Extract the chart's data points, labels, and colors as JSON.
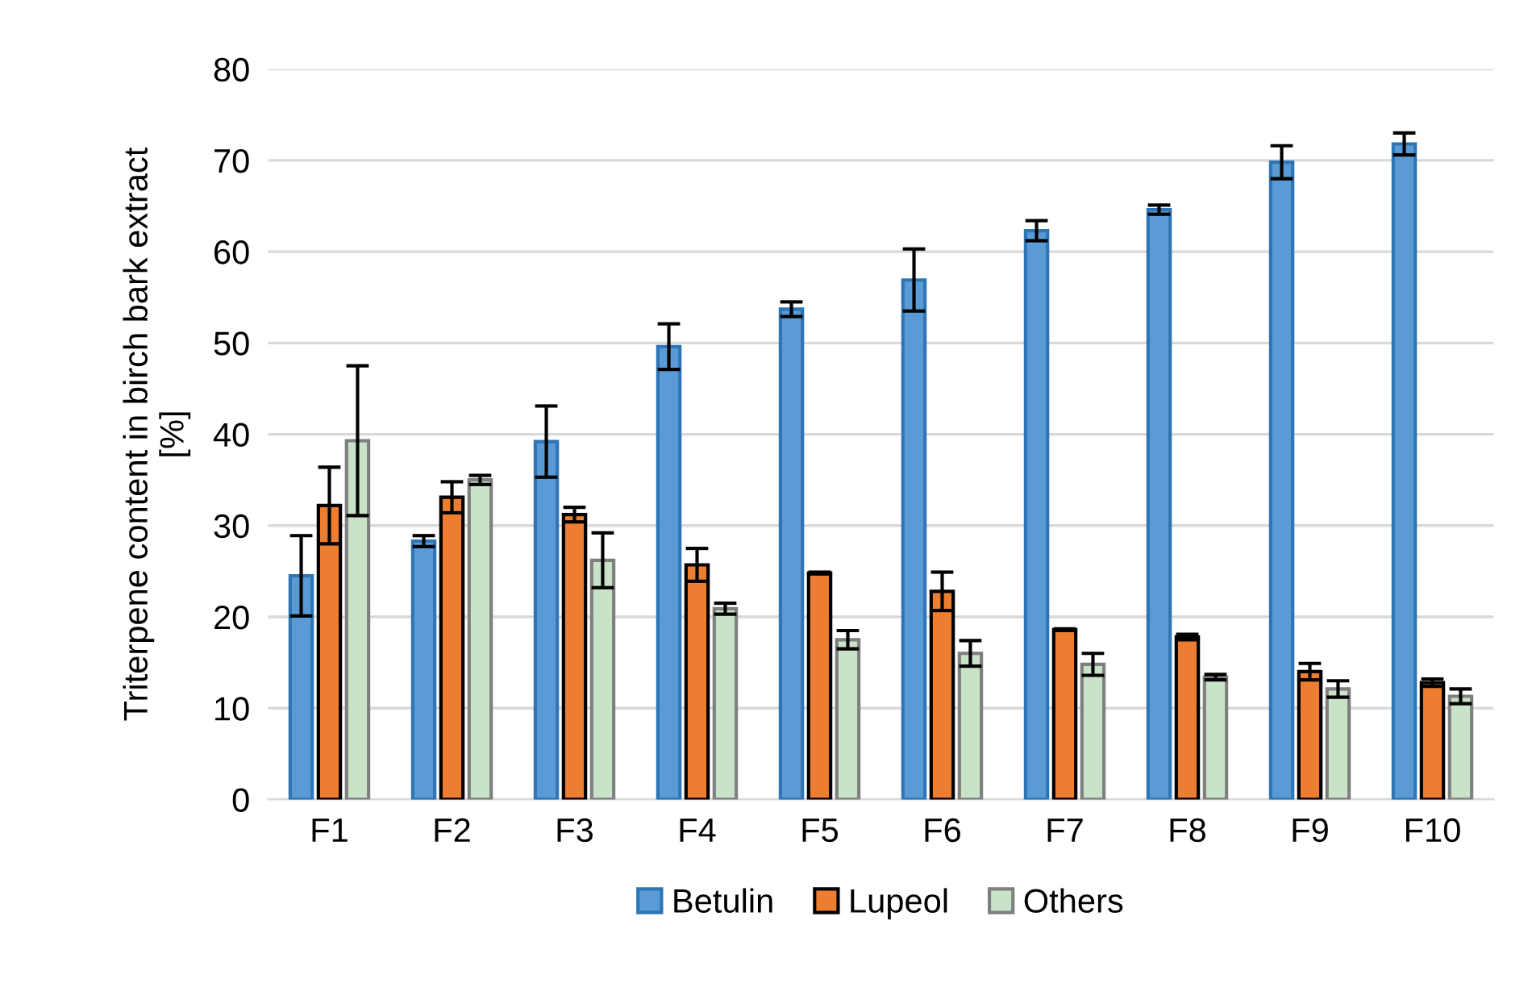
{
  "chart_data": {
    "type": "bar",
    "ylabel": "Triterpene content in birch bark extract\n[%]",
    "categories": [
      "F1",
      "F2",
      "F3",
      "F4",
      "F5",
      "F6",
      "F7",
      "F8",
      "F9",
      "F10"
    ],
    "series": [
      {
        "name": "Betulin",
        "color": "#5b9bd5",
        "values": [
          24.5,
          28.3,
          39.2,
          49.6,
          53.7,
          56.9,
          62.3,
          64.6,
          69.8,
          71.8
        ],
        "errors": [
          4.4,
          0.6,
          3.9,
          2.5,
          0.8,
          3.4,
          1.1,
          0.5,
          1.8,
          1.2
        ]
      },
      {
        "name": "Lupeol",
        "color": "#ed7d31",
        "values": [
          32.2,
          33.1,
          31.2,
          25.7,
          24.8,
          22.8,
          18.6,
          17.8,
          14.0,
          12.8
        ],
        "errors": [
          4.2,
          1.7,
          0.8,
          1.8,
          0.1,
          2.1,
          0.1,
          0.3,
          0.9,
          0.4
        ]
      },
      {
        "name": "Others",
        "color": "#c9e3c9",
        "values": [
          39.3,
          35.0,
          26.2,
          20.9,
          17.5,
          16.0,
          14.8,
          13.4,
          12.1,
          11.3
        ],
        "errors": [
          8.2,
          0.5,
          3.0,
          0.6,
          1.0,
          1.4,
          1.2,
          0.3,
          0.9,
          0.8
        ]
      }
    ],
    "ylim": [
      0,
      80
    ],
    "yticks": [
      0,
      10,
      20,
      30,
      40,
      50,
      60,
      70,
      80
    ],
    "grid": "y",
    "legend": "bottom"
  }
}
